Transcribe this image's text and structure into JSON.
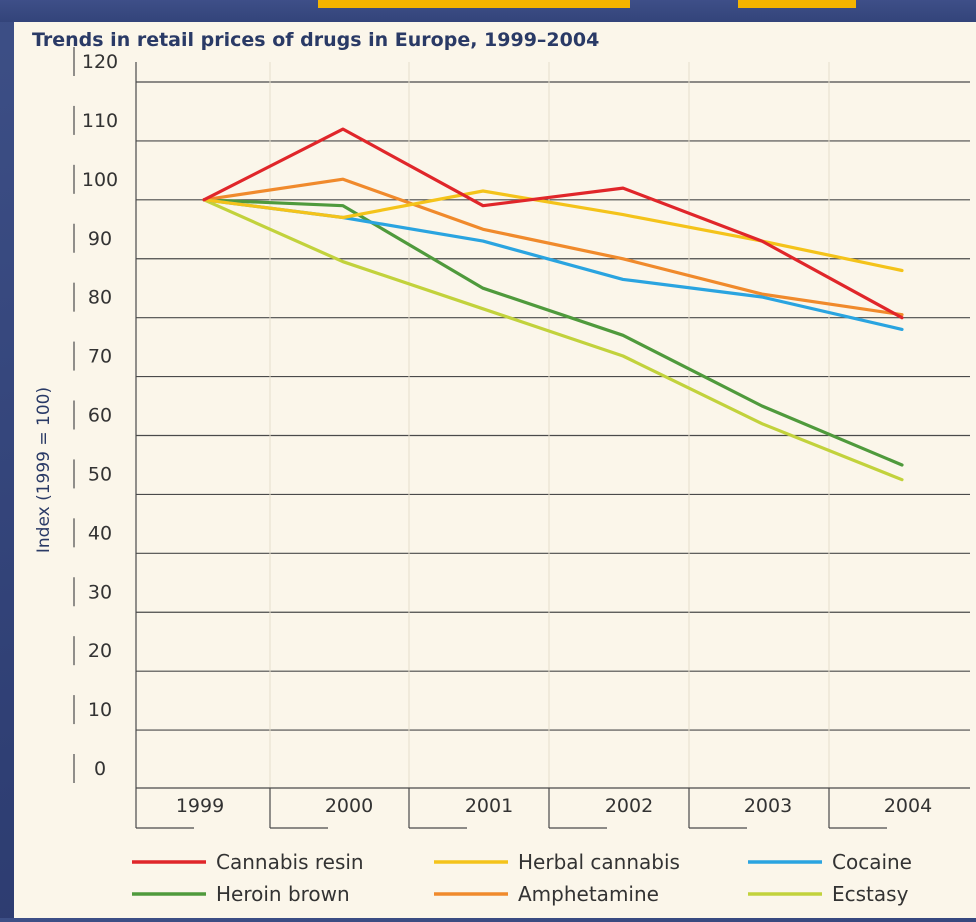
{
  "chart_data": {
    "type": "line",
    "title": "Trends in retail prices of drugs in Europe, 1999–2004",
    "ylabel": "Index (1999 = 100)",
    "xlabel": "",
    "ylim": [
      0,
      120
    ],
    "yticks": [
      0,
      10,
      20,
      30,
      40,
      50,
      60,
      70,
      80,
      90,
      100,
      110,
      120
    ],
    "categories": [
      "1999",
      "2000",
      "2001",
      "2002",
      "2003",
      "2004"
    ],
    "grid": true,
    "legend_position": "bottom",
    "series": [
      {
        "name": "Cannabis resin",
        "color": "#e0262a",
        "values": [
          100,
          112,
          99,
          102,
          93,
          80
        ]
      },
      {
        "name": "Herbal cannabis",
        "color": "#f4c31a",
        "values": [
          100,
          97,
          101.5,
          97.5,
          93,
          88
        ]
      },
      {
        "name": "Cocaine",
        "color": "#2aa4e0",
        "values": [
          100,
          97,
          93,
          86.5,
          83.5,
          78
        ]
      },
      {
        "name": "Heroin brown",
        "color": "#4f9a3c",
        "values": [
          100,
          99,
          85,
          77,
          65,
          55
        ]
      },
      {
        "name": "Amphetamine",
        "color": "#f08a2c",
        "values": [
          100,
          103.5,
          95,
          90,
          84,
          80.5
        ]
      },
      {
        "name": "Ecstasy",
        "color": "#c2d23c",
        "values": [
          100,
          89.5,
          81.5,
          73.5,
          62,
          52.5
        ]
      }
    ]
  }
}
